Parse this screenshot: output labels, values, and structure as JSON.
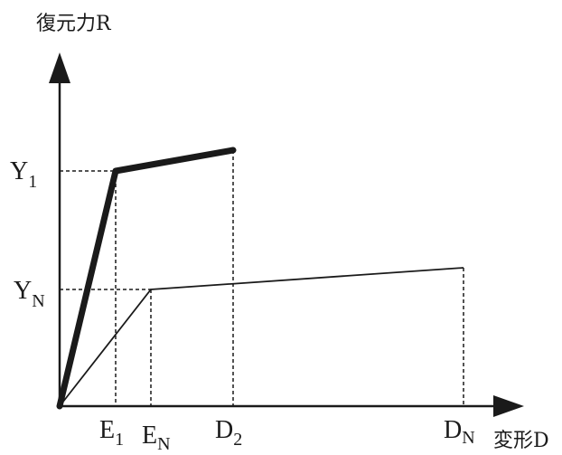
{
  "diagram": {
    "y_axis_title": "復元力R",
    "x_axis_title": "変形D",
    "y_ticks": [
      {
        "main": "Y",
        "sub": "1"
      },
      {
        "main": "Y",
        "sub": "N"
      }
    ],
    "x_ticks": [
      {
        "main": "E",
        "sub": "1"
      },
      {
        "main": "E",
        "sub": "N"
      },
      {
        "main": "D",
        "sub": "2"
      },
      {
        "main": "D",
        "sub": "N"
      }
    ],
    "colors": {
      "ink": "#1a1a1a",
      "background": "#ffffff"
    }
  }
}
